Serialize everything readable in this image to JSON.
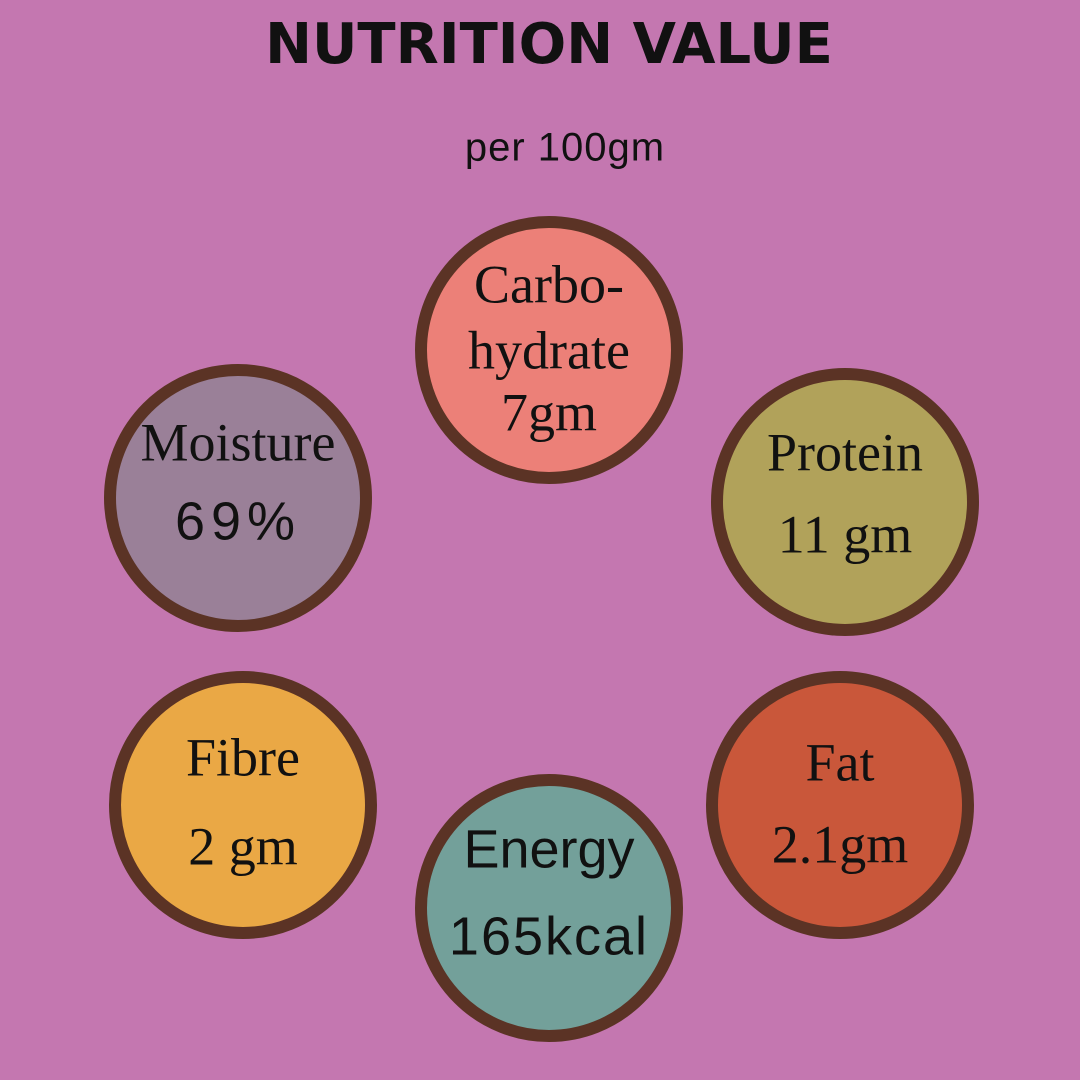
{
  "header": {
    "title": "NUTRITION VALUE",
    "subtitle": "per 100gm"
  },
  "items": [
    {
      "label": [
        "Carbo-",
        "hydrate"
      ],
      "value": "7gm",
      "color": "#ec8078"
    },
    {
      "label": [
        "Moisture"
      ],
      "value": "69%",
      "color": "#9a8098"
    },
    {
      "label": [
        "Protein"
      ],
      "value": "11 gm",
      "color": "#b1a25a"
    },
    {
      "label": [
        "Fibre"
      ],
      "value": "2 gm",
      "color": "#eaa845"
    },
    {
      "label": [
        "Fat"
      ],
      "value": "2.1gm",
      "color": "#c9573a"
    },
    {
      "label": [
        "Energy"
      ],
      "value": "165kcal",
      "color": "#73a09a"
    }
  ]
}
